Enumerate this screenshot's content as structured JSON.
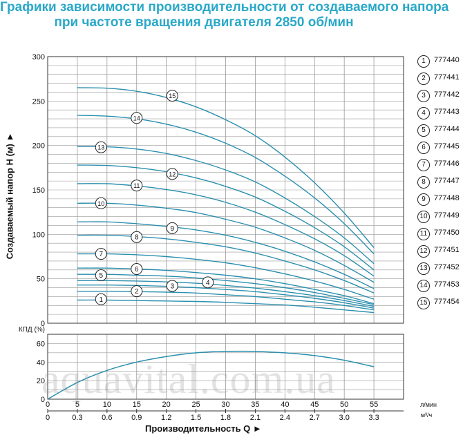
{
  "title_line1": "Графики зависимости производительности от создаваемого напора",
  "title_line2": "при частоте вращения двигателя 2850 об/мин",
  "watermark": "aquavital.com.ua",
  "colors": {
    "curve": "#2a8fae",
    "title": "#2aa8c8",
    "grid": "#9a9a9a"
  },
  "chart_data": [
    {
      "type": "line",
      "title": "",
      "ylabel": "Создаваемый напор H (м) ►",
      "xlabel": "Производительность Q ►",
      "x_unit_top": "л/мин",
      "x_unit_bottom": "м³/ч",
      "x_ticks_lmin": [
        "0",
        "5",
        "10",
        "15",
        "20",
        "25",
        "30",
        "35",
        "40",
        "45",
        "50",
        "55"
      ],
      "x_ticks_m3h": [
        "0",
        "0.3",
        "0.6",
        "0.9",
        "1.2",
        "1.5",
        "1.8",
        "2.1",
        "2.4",
        "2.7",
        "3.0",
        "3.3"
      ],
      "y_ticks": [
        "0",
        "50",
        "100",
        "150",
        "200",
        "250",
        "300"
      ],
      "ylim": [
        0,
        300
      ],
      "xlim_lmin": [
        0,
        60
      ],
      "grid": true,
      "legend_position": "right",
      "series": [
        {
          "name": "777440",
          "label": "1",
          "x": [
            5,
            10,
            15,
            20,
            25,
            30,
            35,
            40,
            45,
            50,
            55
          ],
          "y": [
            26,
            26,
            25.5,
            25,
            24.5,
            23.5,
            22,
            20.5,
            18,
            15,
            12
          ]
        },
        {
          "name": "777441",
          "label": "2",
          "x": [
            5,
            10,
            15,
            20,
            25,
            30,
            35,
            40,
            45,
            50,
            55
          ],
          "y": [
            36,
            36,
            35.5,
            35,
            34,
            32,
            30,
            27,
            24,
            20,
            15
          ]
        },
        {
          "name": "777442",
          "label": "3",
          "x": [
            5,
            10,
            15,
            20,
            25,
            30,
            35,
            40,
            45,
            50,
            55
          ],
          "y": [
            43,
            43,
            42.5,
            41.5,
            40,
            38,
            35.5,
            32,
            28,
            23,
            17
          ]
        },
        {
          "name": "777443",
          "label": "4",
          "x": [
            5,
            10,
            15,
            20,
            25,
            30,
            35,
            40,
            45,
            50,
            55
          ],
          "y": [
            48,
            48,
            47.5,
            46.5,
            45,
            42.5,
            39.5,
            35.5,
            31,
            25.5,
            19
          ]
        },
        {
          "name": "777444",
          "label": "5",
          "x": [
            5,
            10,
            15,
            20,
            25,
            30,
            35,
            40,
            45,
            50,
            55
          ],
          "y": [
            55,
            55,
            54,
            53,
            51,
            48,
            44.5,
            40,
            34.5,
            28,
            21
          ]
        },
        {
          "name": "777445",
          "label": "6",
          "x": [
            5,
            10,
            15,
            20,
            25,
            30,
            35,
            40,
            45,
            50,
            55
          ],
          "y": [
            62,
            62,
            61,
            59.5,
            57,
            54,
            50,
            44.5,
            38,
            31,
            22
          ]
        },
        {
          "name": "777446",
          "label": "7",
          "x": [
            5,
            10,
            15,
            20,
            25,
            30,
            35,
            40,
            45,
            50,
            55
          ],
          "y": [
            78,
            78,
            77,
            75,
            72,
            68,
            62.5,
            55.5,
            47.5,
            38,
            27
          ]
        },
        {
          "name": "777447",
          "label": "8",
          "x": [
            5,
            10,
            15,
            20,
            25,
            30,
            35,
            40,
            45,
            50,
            55
          ],
          "y": [
            99,
            99,
            97.5,
            95,
            91,
            86,
            79,
            70,
            60,
            48,
            34
          ]
        },
        {
          "name": "777448",
          "label": "9",
          "x": [
            5,
            10,
            15,
            20,
            25,
            30,
            35,
            40,
            45,
            50,
            55
          ],
          "y": [
            114,
            114,
            112,
            109,
            105,
            99,
            91,
            81,
            69,
            55,
            39
          ]
        },
        {
          "name": "777449",
          "label": "10",
          "x": [
            5,
            10,
            15,
            20,
            25,
            30,
            35,
            40,
            45,
            50,
            55
          ],
          "y": [
            135,
            135,
            133,
            129.5,
            124.5,
            117,
            108,
            96,
            82,
            65,
            46
          ]
        },
        {
          "name": "777450",
          "label": "11",
          "x": [
            5,
            10,
            15,
            20,
            25,
            30,
            35,
            40,
            45,
            50,
            55
          ],
          "y": [
            157,
            157,
            154.5,
            150.5,
            144.5,
            136,
            125,
            111,
            95,
            76,
            53
          ]
        },
        {
          "name": "777451",
          "label": "12",
          "x": [
            5,
            10,
            15,
            20,
            25,
            30,
            35,
            40,
            45,
            50,
            55
          ],
          "y": [
            178,
            177.5,
            175,
            170.5,
            163.5,
            154,
            142,
            126,
            107.5,
            86,
            60
          ]
        },
        {
          "name": "777452",
          "label": "13",
          "x": [
            5,
            10,
            15,
            20,
            25,
            30,
            35,
            40,
            45,
            50,
            55
          ],
          "y": [
            199,
            198.5,
            196,
            191,
            183,
            172.5,
            159,
            141,
            120,
            96,
            67
          ]
        },
        {
          "name": "777453",
          "label": "14",
          "x": [
            5,
            10,
            15,
            20,
            25,
            30,
            35,
            40,
            45,
            50,
            55
          ],
          "y": [
            234,
            233,
            230,
            224,
            215,
            202.5,
            186.5,
            165.5,
            141,
            112,
            78
          ]
        },
        {
          "name": "777454",
          "label": "15",
          "x": [
            5,
            10,
            15,
            20,
            25,
            30,
            35,
            40,
            45,
            50,
            55
          ],
          "y": [
            265,
            264.5,
            261,
            254,
            243.5,
            229,
            211,
            187,
            158,
            124,
            85
          ]
        }
      ],
      "curve_label_positions": [
        {
          "label": "1",
          "x": 9,
          "y": 27
        },
        {
          "label": "2",
          "x": 15,
          "y": 36
        },
        {
          "label": "3",
          "x": 21,
          "y": 42
        },
        {
          "label": "4",
          "x": 27,
          "y": 46
        },
        {
          "label": "5",
          "x": 9,
          "y": 54
        },
        {
          "label": "6",
          "x": 15,
          "y": 61
        },
        {
          "label": "7",
          "x": 9,
          "y": 78
        },
        {
          "label": "8",
          "x": 15,
          "y": 97
        },
        {
          "label": "9",
          "x": 21,
          "y": 107
        },
        {
          "label": "10",
          "x": 9,
          "y": 135
        },
        {
          "label": "11",
          "x": 15,
          "y": 155
        },
        {
          "label": "12",
          "x": 21,
          "y": 168
        },
        {
          "label": "13",
          "x": 9,
          "y": 198
        },
        {
          "label": "14",
          "x": 15,
          "y": 231
        },
        {
          "label": "15",
          "x": 21,
          "y": 256
        }
      ]
    },
    {
      "type": "line",
      "title": "",
      "ylabel": "КПД (%)",
      "y_ticks": [
        "0",
        "20",
        "40",
        "60"
      ],
      "ylim": [
        0,
        70
      ],
      "grid": true,
      "series": [
        {
          "name": "",
          "x": [
            0,
            5,
            10,
            15,
            20,
            25,
            30,
            35,
            40,
            45,
            50,
            55
          ],
          "y": [
            0,
            18,
            31,
            40,
            46,
            50,
            51.5,
            51.5,
            50,
            47,
            42,
            35
          ]
        }
      ]
    }
  ]
}
